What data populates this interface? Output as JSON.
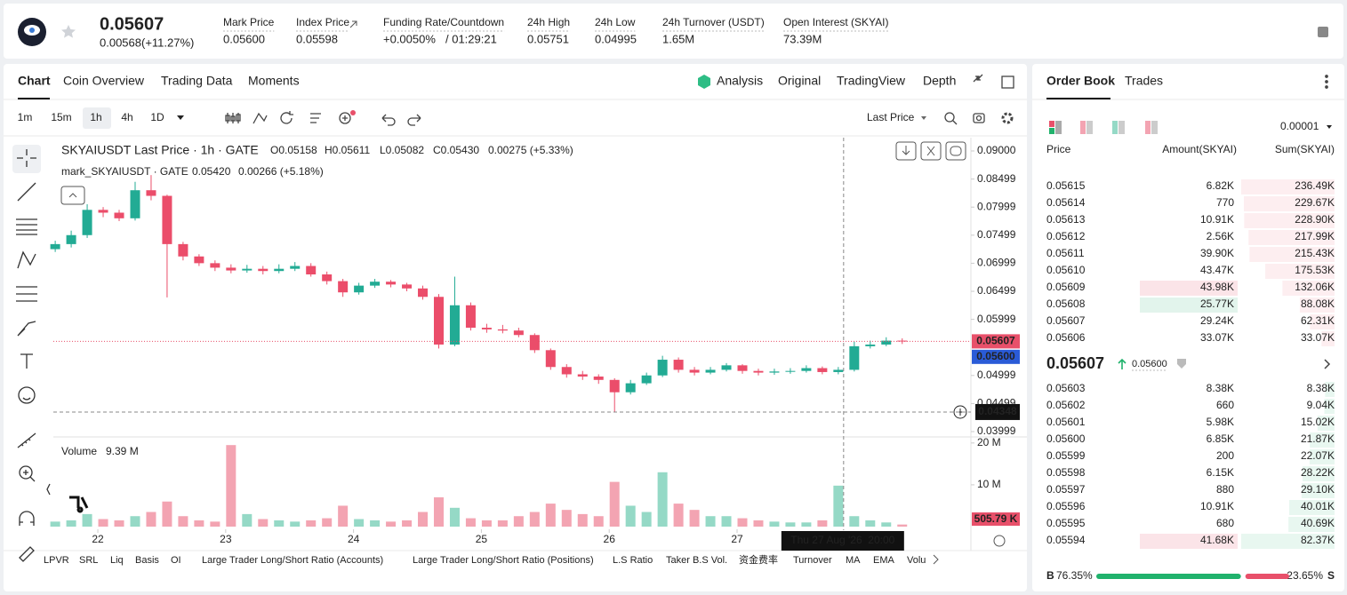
{
  "header": {
    "price": "0.05607",
    "change": "0.00568(+11.27%)",
    "stats": [
      {
        "label": "Mark Price",
        "value": "0.05600"
      },
      {
        "label": "Index Price",
        "value": "0.05598"
      },
      {
        "label": "Funding Rate/Countdown",
        "value": "+0.0050%",
        "extra": "/ 01:29:21"
      },
      {
        "label": "24h High",
        "value": "0.05751"
      },
      {
        "label": "24h Low",
        "value": "0.04995"
      },
      {
        "label": "24h Turnover (USDT)",
        "value": "1.65M"
      },
      {
        "label": "Open Interest (SKYAI)",
        "value": "73.39M"
      }
    ]
  },
  "tabs": [
    "Chart",
    "Coin Overview",
    "Trading Data",
    "Moments"
  ],
  "view_tabs": [
    "Analysis",
    "Original",
    "TradingView",
    "Depth"
  ],
  "intervals": [
    "1m",
    "15m",
    "1h",
    "4h",
    "1D"
  ],
  "price_type": "Last Price",
  "legend": {
    "main": "SKYAIUSDT Last Price · 1h · GATE",
    "ohlc": [
      "O0.05158",
      "H0.05611",
      "L0.05082",
      "C0.05430",
      "0.00275 (+5.33%)"
    ],
    "mark_name": "mark_SKYAIUSDT · GATE",
    "mark_values": [
      "0.05420",
      "0.00266 (+5.18%)"
    ]
  },
  "bottom_indicators": [
    "LPVR",
    "SRL",
    "Liq",
    "Basis",
    "OI",
    "Large Trader Long/Short Ratio (Accounts)",
    "Large Trader Long/Short Ratio (Positions)",
    "L.S Ratio",
    "Taker B.S Vol.",
    "资金费率",
    "Turnover",
    "MA",
    "EMA",
    "Volu"
  ],
  "chart_data": {
    "type": "candlestick",
    "x": [
      21.6667,
      21.7917,
      21.9167,
      22.0417,
      22.1667,
      22.2917,
      22.4167,
      22.5417,
      22.6667,
      22.7917,
      22.9167,
      23.0417,
      23.1667,
      23.2917,
      23.4167,
      23.5417,
      23.6667,
      23.7917,
      23.9167,
      24.0417,
      24.1667,
      24.2917,
      24.4167,
      24.5417,
      24.6667,
      24.7917,
      24.9167,
      25.0417,
      25.1667,
      25.2917,
      25.4167,
      25.5417,
      25.6667,
      25.7917,
      25.9167,
      26.0417,
      26.1667,
      26.2917,
      26.4167,
      26.5417,
      26.6667,
      26.7917,
      26.9167,
      27.0417,
      27.1667,
      27.2917,
      27.4167,
      27.5417,
      27.6667,
      27.7917,
      27.9167,
      28.0417,
      28.1667,
      28.2917
    ],
    "open": [
      0.0725,
      0.0734,
      0.075,
      0.0795,
      0.079,
      0.078,
      0.083,
      0.082,
      0.0734,
      0.0712,
      0.07,
      0.0692,
      0.0687,
      0.069,
      0.0686,
      0.069,
      0.0695,
      0.068,
      0.0668,
      0.0648,
      0.066,
      0.0667,
      0.0662,
      0.0655,
      0.064,
      0.0555,
      0.0625,
      0.0585,
      0.0582,
      0.058,
      0.0572,
      0.0545,
      0.0515,
      0.0502,
      0.0498,
      0.0492,
      0.047,
      0.0486,
      0.05,
      0.0528,
      0.051,
      0.0505,
      0.051,
      0.0518,
      0.0508,
      0.0505,
      0.0507,
      0.0508,
      0.0513,
      0.0506,
      0.051,
      0.0552,
      0.0555,
      0.0562
    ],
    "high": [
      0.074,
      0.0758,
      0.0805,
      0.08,
      0.0795,
      0.0845,
      0.0857,
      0.0822,
      0.0738,
      0.0716,
      0.0705,
      0.0698,
      0.0697,
      0.0695,
      0.0698,
      0.0702,
      0.07,
      0.0685,
      0.0672,
      0.0665,
      0.0672,
      0.067,
      0.0665,
      0.066,
      0.0645,
      0.0676,
      0.063,
      0.0592,
      0.059,
      0.0585,
      0.0575,
      0.0548,
      0.052,
      0.0508,
      0.0502,
      0.0495,
      0.0492,
      0.0505,
      0.0535,
      0.0532,
      0.0515,
      0.0515,
      0.0522,
      0.052,
      0.0512,
      0.0512,
      0.0513,
      0.0518,
      0.0516,
      0.0515,
      0.056,
      0.0562,
      0.0568,
      0.0566
    ],
    "low": [
      0.072,
      0.0728,
      0.0745,
      0.0782,
      0.0775,
      0.0776,
      0.0812,
      0.0639,
      0.0705,
      0.0695,
      0.0686,
      0.0682,
      0.0683,
      0.068,
      0.0682,
      0.0686,
      0.0676,
      0.0662,
      0.064,
      0.0644,
      0.0656,
      0.0657,
      0.065,
      0.0635,
      0.0548,
      0.0552,
      0.058,
      0.0576,
      0.0575,
      0.0568,
      0.054,
      0.051,
      0.0496,
      0.0492,
      0.0485,
      0.0435,
      0.0466,
      0.0483,
      0.0497,
      0.0505,
      0.05,
      0.0502,
      0.0507,
      0.0503,
      0.05,
      0.0501,
      0.0503,
      0.0505,
      0.0502,
      0.0502,
      0.0507,
      0.0548,
      0.0552,
      0.0556
    ],
    "close": [
      0.0734,
      0.075,
      0.0795,
      0.079,
      0.078,
      0.083,
      0.082,
      0.0734,
      0.0712,
      0.07,
      0.0692,
      0.0687,
      0.069,
      0.0686,
      0.069,
      0.0695,
      0.068,
      0.0668,
      0.0648,
      0.066,
      0.0667,
      0.0662,
      0.0655,
      0.064,
      0.0555,
      0.0625,
      0.0585,
      0.0582,
      0.058,
      0.0572,
      0.0545,
      0.0515,
      0.0502,
      0.0498,
      0.0492,
      0.047,
      0.0486,
      0.05,
      0.0528,
      0.051,
      0.0505,
      0.051,
      0.0518,
      0.0508,
      0.0505,
      0.0507,
      0.0508,
      0.0513,
      0.0506,
      0.051,
      0.0552,
      0.0555,
      0.0562,
      0.0561
    ],
    "volume": [
      1.2,
      1.5,
      3.0,
      1.8,
      1.5,
      2.5,
      3.5,
      6.0,
      2.5,
      1.5,
      1.2,
      19.5,
      3.0,
      1.8,
      1.5,
      1.2,
      1.5,
      2.0,
      5.0,
      1.8,
      1.5,
      1.2,
      1.5,
      3.5,
      7.0,
      4.5,
      2.0,
      1.5,
      1.5,
      2.5,
      3.5,
      5.5,
      4.0,
      3.0,
      2.5,
      10.7,
      5.0,
      3.5,
      13.0,
      5.5,
      4.0,
      2.5,
      2.5,
      2.0,
      1.5,
      1.2,
      1.0,
      1.0,
      1.5,
      9.8,
      2.5,
      1.5,
      1.0,
      0.5
    ],
    "xlim": [
      21.652,
      28.829
    ],
    "xticks": [
      22,
      23,
      24,
      25,
      26,
      27
    ],
    "ylim": [
      0.03904,
      0.09237
    ],
    "yticks": [
      {
        "value": 0.09,
        "label": "0.09000"
      },
      0.08499,
      0.07999,
      0.07499,
      0.06999,
      0.06499,
      0.05999,
      0.04999,
      0.04499,
      0.03999
    ],
    "grid": false,
    "volume_name": "Volume",
    "volume_value": "9.39 M",
    "volume_ylim": [
      0,
      20.6
    ],
    "volume_yticks": [
      {
        "value": 20,
        "label": "20 M"
      },
      {
        "value": 10,
        "label": "10 M"
      }
    ],
    "up_color": "#22ab94",
    "down_color": "#eb4d6a",
    "volume_up_color": "#95d9c6",
    "volume_down_color": "#f3a4b2",
    "last_price": 0.05607,
    "mark_price": {
      "value": 0.056,
      "label": "0.05600"
    },
    "last_volume": {
      "value": 0.50579,
      "label": "505.79 K"
    },
    "crosshair": {
      "x": 27.8333,
      "y": 0.04348,
      "label": "Thu 27 Aug '26  20:00"
    }
  },
  "order_book": {
    "tabs": [
      "Order Book",
      "Trades"
    ],
    "precision": "0.00001",
    "columns": [
      "Price",
      "Amount(SKYAI)",
      "Sum(SKYAI)"
    ],
    "asks": [
      {
        "price": "0.05615",
        "amount": "6.82K",
        "sum": "236.49K"
      },
      {
        "price": "0.05614",
        "amount": "770",
        "sum": "229.67K"
      },
      {
        "price": "0.05613",
        "amount": "10.91K",
        "sum": "228.90K"
      },
      {
        "price": "0.05612",
        "amount": "2.56K",
        "sum": "217.99K"
      },
      {
        "price": "0.05611",
        "amount": "39.90K",
        "sum": "215.43K"
      },
      {
        "price": "0.05610",
        "amount": "43.47K",
        "sum": "175.53K"
      },
      {
        "price": "0.05609",
        "amount": "43.98K",
        "sum": "132.06K",
        "highlight": "#fbe4e8"
      },
      {
        "price": "0.05608",
        "amount": "25.77K",
        "sum": "88.08K",
        "highlight": "#e2f4ec"
      },
      {
        "price": "0.05607",
        "amount": "29.24K",
        "sum": "62.31K"
      },
      {
        "price": "0.05606",
        "amount": "33.07K",
        "sum": "33.07K"
      }
    ],
    "mid": {
      "price": "0.05607",
      "mark": "0.05600"
    },
    "bids": [
      {
        "price": "0.05603",
        "amount": "8.38K",
        "sum": "8.38K"
      },
      {
        "price": "0.05602",
        "amount": "660",
        "sum": "9.04K"
      },
      {
        "price": "0.05601",
        "amount": "5.98K",
        "sum": "15.02K"
      },
      {
        "price": "0.05600",
        "amount": "6.85K",
        "sum": "21.87K"
      },
      {
        "price": "0.05599",
        "amount": "200",
        "sum": "22.07K"
      },
      {
        "price": "0.05598",
        "amount": "6.15K",
        "sum": "28.22K"
      },
      {
        "price": "0.05597",
        "amount": "880",
        "sum": "29.10K"
      },
      {
        "price": "0.05596",
        "amount": "10.91K",
        "sum": "40.01K"
      },
      {
        "price": "0.05595",
        "amount": "680",
        "sum": "40.69K"
      },
      {
        "price": "0.05594",
        "amount": "41.68K",
        "sum": "82.37K",
        "highlight": "#fbe4e8"
      }
    ],
    "buy_label": "B",
    "buy": "76.35%",
    "sell": "23.65%",
    "sell_label": "S"
  }
}
